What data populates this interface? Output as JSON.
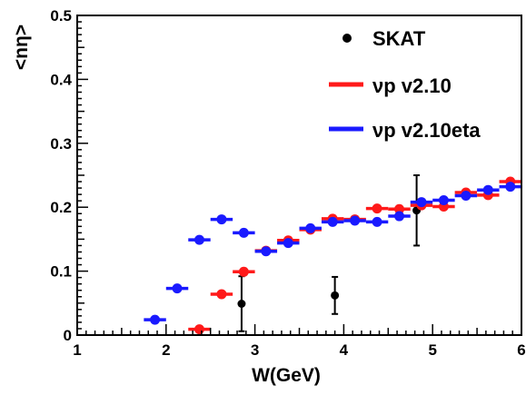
{
  "chart_data": {
    "type": "scatter",
    "xlabel": "W(GeV)",
    "ylabel": "<nη>",
    "xlim": [
      1,
      6
    ],
    "ylim": [
      0,
      0.5
    ],
    "x_ticks": [
      "1",
      "2",
      "3",
      "4",
      "5",
      "6"
    ],
    "y_ticks": [
      "0",
      "0.1",
      "0.2",
      "0.3",
      "0.4",
      "0.5"
    ],
    "grid": false,
    "legend_position": "top-right",
    "series": [
      {
        "name": "SKAT",
        "color": "#000000",
        "style": "points-with-error-bars",
        "points": [
          {
            "x": 2.85,
            "y": 0.049,
            "err": 0.043
          },
          {
            "x": 3.9,
            "y": 0.062,
            "err": 0.029
          },
          {
            "x": 4.82,
            "y": 0.195,
            "err": 0.055
          }
        ]
      },
      {
        "name": "νp v2.10",
        "color": "#ff1a1a",
        "style": "points-with-x-bins",
        "half_width": 0.125,
        "points": [
          {
            "x": 2.375,
            "y": 0.009
          },
          {
            "x": 2.625,
            "y": 0.064
          },
          {
            "x": 2.875,
            "y": 0.099
          },
          {
            "x": 3.125,
            "y": 0.132
          },
          {
            "x": 3.375,
            "y": 0.148
          },
          {
            "x": 3.625,
            "y": 0.165
          },
          {
            "x": 3.875,
            "y": 0.182
          },
          {
            "x": 4.125,
            "y": 0.181
          },
          {
            "x": 4.375,
            "y": 0.198
          },
          {
            "x": 4.625,
            "y": 0.197
          },
          {
            "x": 4.875,
            "y": 0.203
          },
          {
            "x": 5.125,
            "y": 0.201
          },
          {
            "x": 5.375,
            "y": 0.223
          },
          {
            "x": 5.625,
            "y": 0.219
          },
          {
            "x": 5.875,
            "y": 0.24
          }
        ]
      },
      {
        "name": "νp v2.10eta",
        "color": "#1a1aff",
        "style": "points-with-x-bins",
        "half_width": 0.125,
        "points": [
          {
            "x": 1.875,
            "y": 0.024
          },
          {
            "x": 2.125,
            "y": 0.073
          },
          {
            "x": 2.375,
            "y": 0.149
          },
          {
            "x": 2.625,
            "y": 0.181
          },
          {
            "x": 2.875,
            "y": 0.16
          },
          {
            "x": 3.125,
            "y": 0.131
          },
          {
            "x": 3.375,
            "y": 0.144
          },
          {
            "x": 3.625,
            "y": 0.167
          },
          {
            "x": 3.875,
            "y": 0.177
          },
          {
            "x": 4.125,
            "y": 0.179
          },
          {
            "x": 4.375,
            "y": 0.177
          },
          {
            "x": 4.625,
            "y": 0.186
          },
          {
            "x": 4.875,
            "y": 0.208
          },
          {
            "x": 5.125,
            "y": 0.211
          },
          {
            "x": 5.375,
            "y": 0.218
          },
          {
            "x": 5.625,
            "y": 0.227
          },
          {
            "x": 5.875,
            "y": 0.232
          }
        ]
      }
    ]
  }
}
